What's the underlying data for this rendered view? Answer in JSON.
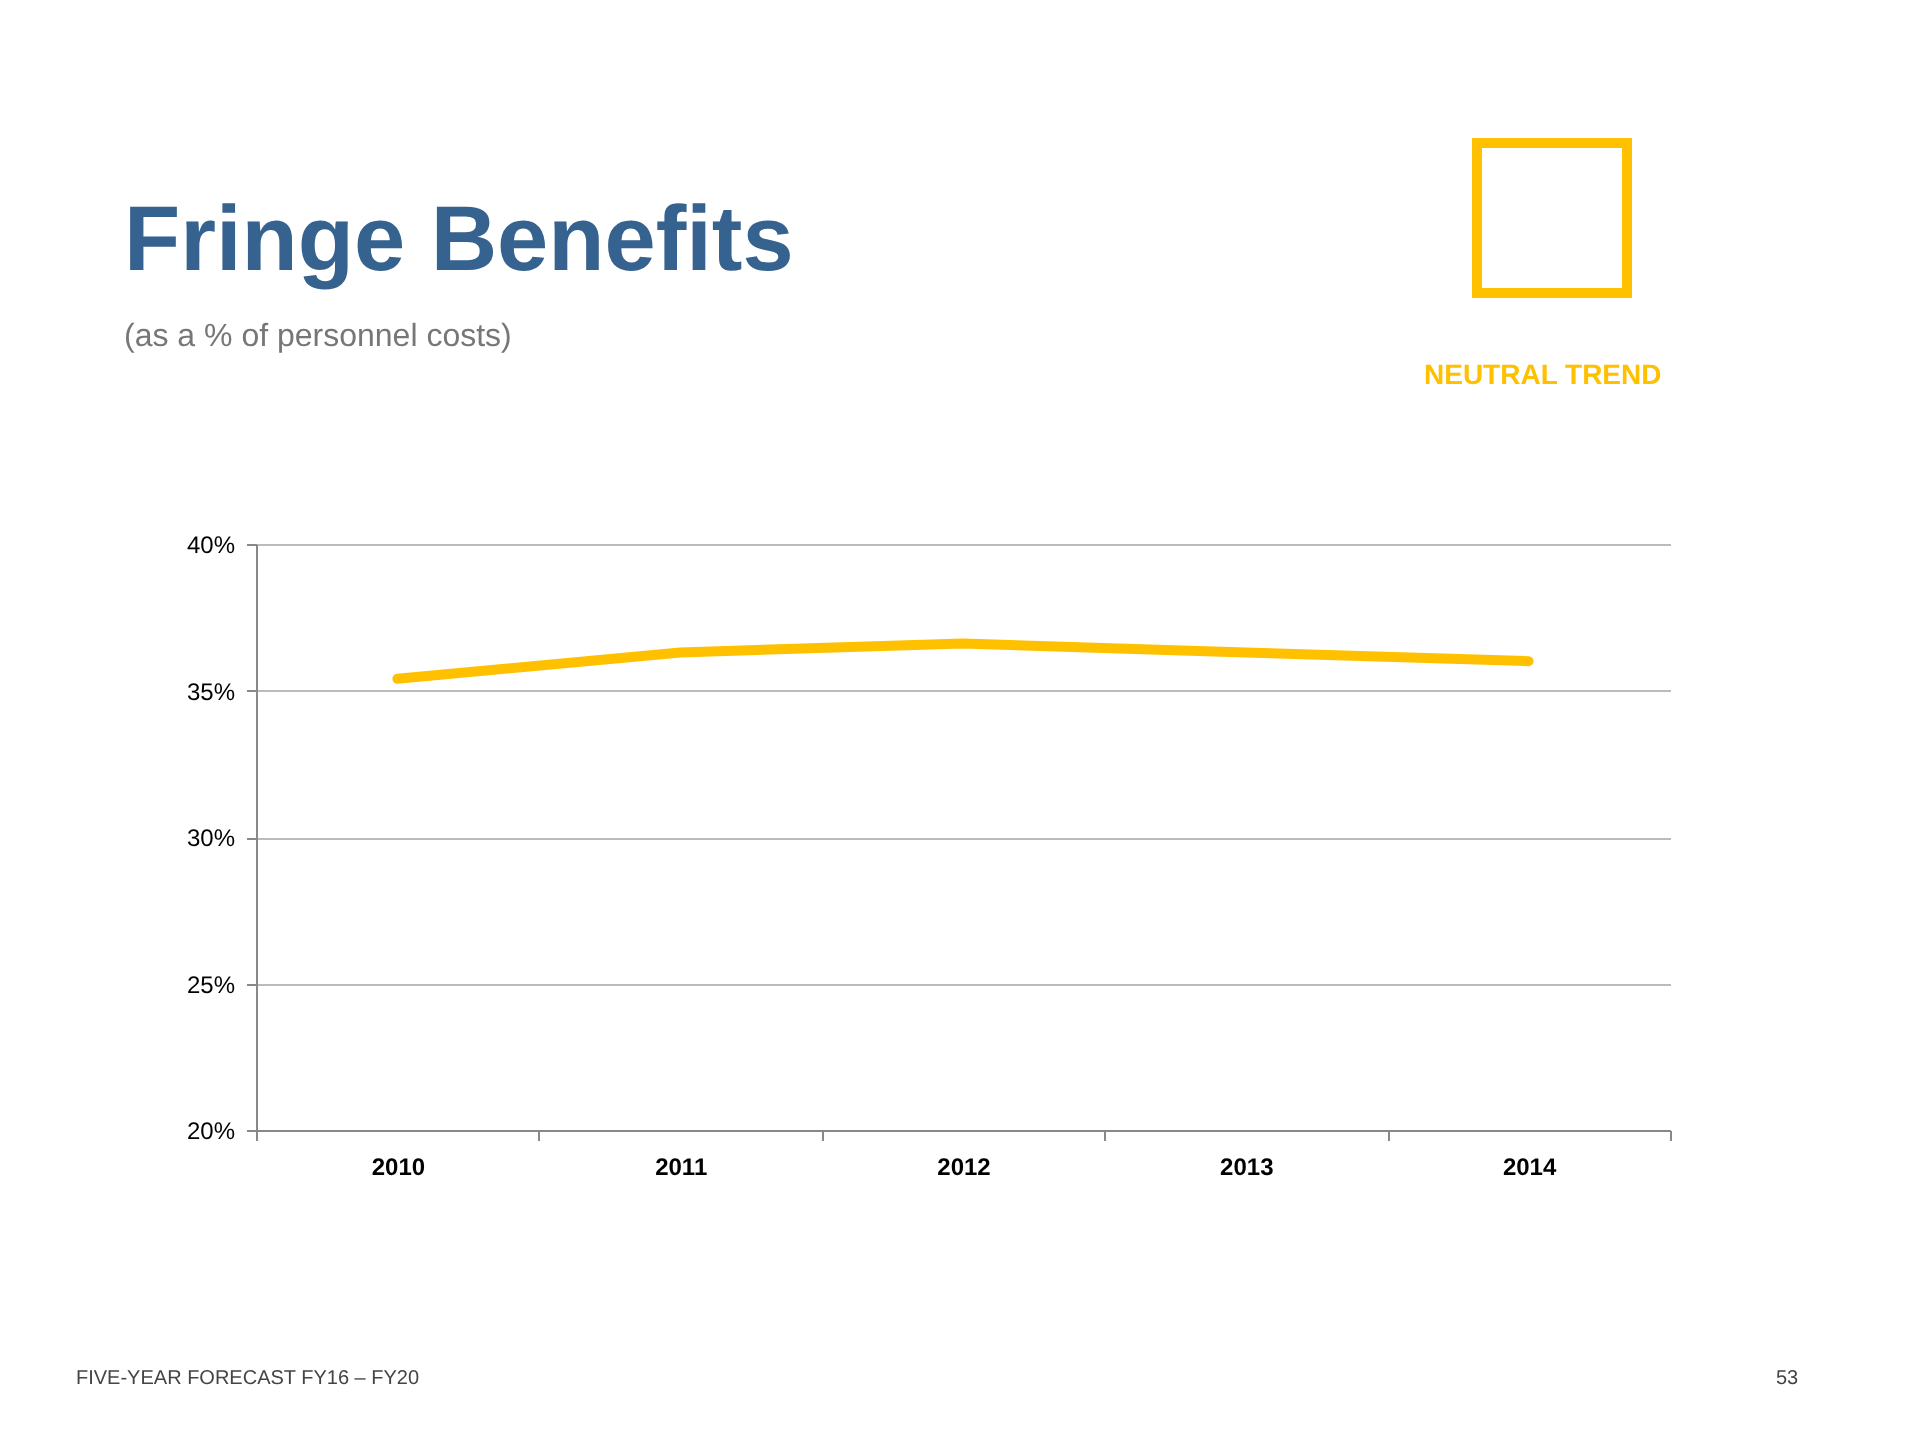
{
  "chart_data": {
    "type": "line",
    "title": "Fringe Benefits",
    "subtitle": "(as a % of personnel costs)",
    "annotations": [
      "NEUTRAL TREND",
      "FIVE-YEAR FORECAST  FY16 – FY20",
      "53"
    ],
    "categories": [
      "2010",
      "2011",
      "2012",
      "2013",
      "2014"
    ],
    "series": [
      {
        "color": "#ffc000",
        "values": [
          35.4,
          36.3,
          36.6,
          36.3,
          36.0
        ]
      }
    ],
    "ylim": [
      20,
      40
    ],
    "yticks": [
      {
        "value": 20,
        "label": "20%"
      },
      {
        "value": 25,
        "label": "25%"
      },
      {
        "value": 30,
        "label": "30%"
      },
      {
        "value": 35,
        "label": "35%"
      },
      {
        "value": 40,
        "label": "40%"
      }
    ],
    "grid": "y",
    "legend": false,
    "marker": "none",
    "line_style": "solid"
  }
}
